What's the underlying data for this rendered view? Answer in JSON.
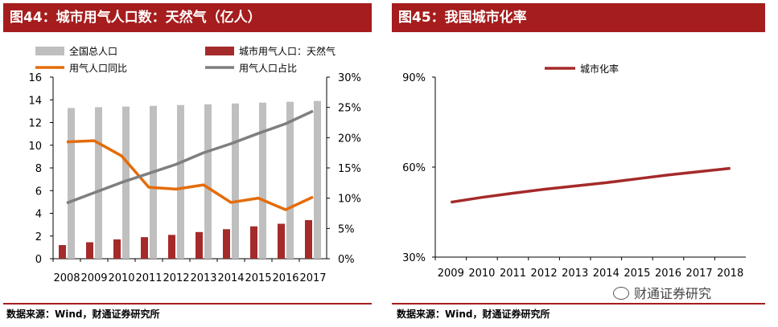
{
  "left_panel": {
    "title": "图44：城市用气人口数：天然气（亿人）",
    "source": "数据来源：Wind，财通证券研究所"
  },
  "right_panel": {
    "title": "图45：我国城市化率",
    "source": "数据来源：Wind，财通证券研究所"
  },
  "watermark": "财通证券研究",
  "colors": {
    "title_bg": "#a51d1d",
    "gray_bar": "#bfbfbf",
    "red_bar": "#a52a2a",
    "orange_line": "#e46c0a",
    "gray_line": "#7f7f7f",
    "urban_line": "#a52a2a"
  },
  "chart_data": [
    {
      "type": "bar",
      "title": "图44：城市用气人口数：天然气（亿人）",
      "categories": [
        "2008",
        "2009",
        "2010",
        "2011",
        "2012",
        "2013",
        "2014",
        "2015",
        "2016",
        "2017"
      ],
      "ylim_left": [
        0,
        16
      ],
      "yticks_left": [
        "0",
        "2",
        "4",
        "6",
        "8",
        "10",
        "12",
        "14",
        "16"
      ],
      "ylim_right": [
        0,
        30
      ],
      "yticks_right": [
        "0%",
        "5%",
        "10%",
        "15%",
        "20%",
        "25%",
        "30%"
      ],
      "series": [
        {
          "name": "全国总人口",
          "kind": "bar",
          "axis": "left",
          "values": [
            13.28,
            13.35,
            13.41,
            13.47,
            13.54,
            13.61,
            13.68,
            13.75,
            13.83,
            13.9
          ]
        },
        {
          "name": "城市用气人口：天然气",
          "kind": "bar",
          "axis": "left",
          "values": [
            1.2,
            1.45,
            1.7,
            1.9,
            2.1,
            2.35,
            2.6,
            2.85,
            3.08,
            3.4
          ]
        },
        {
          "name": "用气人口同比",
          "kind": "line",
          "axis": "right",
          "values": [
            19.3,
            19.5,
            17.0,
            11.8,
            11.5,
            12.2,
            9.3,
            10.0,
            8.1,
            10.2
          ]
        },
        {
          "name": "用气人口占比",
          "kind": "line",
          "axis": "right",
          "values": [
            9.2,
            10.9,
            12.6,
            14.1,
            15.6,
            17.5,
            19.0,
            20.7,
            22.3,
            24.4
          ]
        }
      ]
    },
    {
      "type": "line",
      "title": "图45：我国城市化率",
      "categories": [
        "2009",
        "2010",
        "2011",
        "2012",
        "2013",
        "2014",
        "2015",
        "2016",
        "2017",
        "2018"
      ],
      "ylim": [
        30,
        90
      ],
      "yticks": [
        "30%",
        "60%",
        "90%"
      ],
      "series": [
        {
          "name": "城市化率",
          "values": [
            48.3,
            49.9,
            51.3,
            52.6,
            53.7,
            54.8,
            56.1,
            57.4,
            58.5,
            59.6
          ]
        }
      ]
    }
  ]
}
